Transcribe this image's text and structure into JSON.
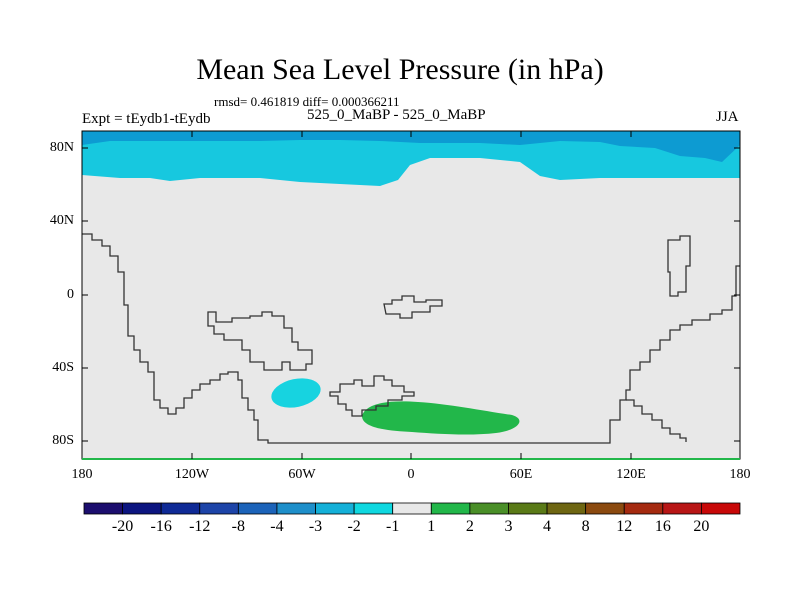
{
  "title": "Mean Sea Level Pressure (in hPa)",
  "stats": "rmsd= 0.461819 diff= 0.000366211",
  "left_label": "Expt = tEydb1-tEydb",
  "center_label": "525_0_MaBP - 525_0_MaBP",
  "season": "JJA",
  "axes": {
    "lat_ticks": [
      "80N",
      "40N",
      "0",
      "40S",
      "80S"
    ],
    "lon_ticks": [
      "180",
      "120W",
      "60W",
      "0",
      "60E",
      "120E",
      "180"
    ]
  },
  "colorbar": {
    "labels": [
      "-20",
      "-16",
      "-12",
      "-8",
      "-4",
      "-3",
      "-2",
      "-1",
      "1",
      "2",
      "3",
      "4",
      "8",
      "12",
      "16",
      "20"
    ],
    "colors": [
      "#1c0e6e",
      "#0c1580",
      "#0f2a96",
      "#1d44a8",
      "#1c63b9",
      "#1e8fca",
      "#14b0d8",
      "#0fd8e0",
      "#e8e8e8",
      "#22b74a",
      "#4a8f28",
      "#5a7a17",
      "#6e6612",
      "#8b4a0f",
      "#a52a10",
      "#b81616",
      "#c80808"
    ]
  },
  "chart_data": {
    "type": "heatmap",
    "title": "Mean Sea Level Pressure (in hPa)",
    "x_range": [
      -180,
      180
    ],
    "y_range": [
      -90,
      90
    ],
    "features": [
      {
        "name": "northern polar band",
        "value_range": "-3 to -1"
      },
      {
        "name": "arctic core",
        "value_range": "-4 to -3"
      },
      {
        "name": "southern atlantic anomaly",
        "value_range": "1 to 2"
      },
      {
        "name": "south pacific patch",
        "value_range": "-2 to -1"
      }
    ]
  }
}
